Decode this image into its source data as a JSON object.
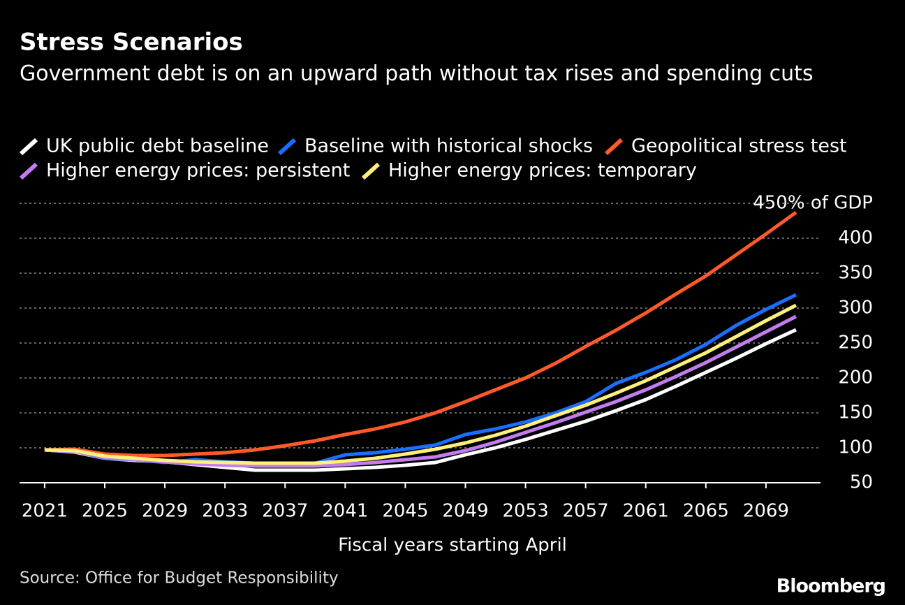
{
  "chart_data": {
    "type": "line",
    "title": "Stress Scenarios",
    "subtitle": "Government debt is on an upward path without tax rises and spending cuts",
    "x_label": "Fiscal years starting April",
    "source": "Source: Office for Budget Responsibility",
    "brand": "Bloomberg",
    "x": [
      2021,
      2023,
      2025,
      2027,
      2029,
      2031,
      2033,
      2035,
      2037,
      2039,
      2041,
      2043,
      2045,
      2047,
      2049,
      2051,
      2053,
      2055,
      2057,
      2059,
      2061,
      2063,
      2065,
      2067,
      2069,
      2071
    ],
    "series": [
      {
        "name": "UK public debt baseline",
        "color": "#ffffff",
        "values": [
          97,
          94,
          85,
          82,
          80,
          76,
          72,
          68,
          68,
          68,
          70,
          72,
          75,
          79,
          90,
          100,
          112,
          125,
          138,
          153,
          169,
          188,
          208,
          228,
          249,
          269
        ]
      },
      {
        "name": "Baseline with historical shocks",
        "color": "#1a6fff",
        "values": [
          97,
          95,
          85,
          83,
          79,
          83,
          80,
          78,
          77,
          78,
          90,
          93,
          98,
          104,
          119,
          127,
          137,
          150,
          166,
          192,
          208,
          226,
          248,
          275,
          298,
          319
        ]
      },
      {
        "name": "Geopolitical stress test",
        "color": "#ff5a2a",
        "values": [
          97,
          98,
          91,
          89,
          89,
          91,
          93,
          97,
          103,
          110,
          119,
          127,
          137,
          150,
          166,
          183,
          200,
          221,
          245,
          268,
          293,
          320,
          346,
          376,
          406,
          437
        ]
      },
      {
        "name": "Higher energy prices: persistent",
        "color": "#c27cf0",
        "values": [
          97,
          95,
          86,
          83,
          80,
          77,
          75,
          74,
          74,
          74,
          76,
          79,
          83,
          87,
          96,
          108,
          122,
          136,
          151,
          166,
          183,
          202,
          222,
          244,
          266,
          288
        ]
      },
      {
        "name": "Higher energy prices: temporary",
        "color": "#fff07a",
        "values": [
          97,
          96,
          88,
          85,
          82,
          80,
          79,
          78,
          78,
          78,
          81,
          85,
          91,
          98,
          107,
          118,
          131,
          146,
          161,
          178,
          196,
          216,
          236,
          259,
          282,
          304
        ]
      }
    ],
    "xlim": [
      2019.33,
      2072.63
    ],
    "xticks": [
      2021,
      2025,
      2029,
      2033,
      2037,
      2041,
      2045,
      2049,
      2053,
      2057,
      2061,
      2065,
      2069
    ],
    "ylim": [
      50,
      450
    ],
    "yticks": [
      50,
      100,
      150,
      200,
      250,
      300,
      350,
      400,
      {
        "value": 450,
        "label": "450% of GDP"
      }
    ],
    "grid": true
  }
}
